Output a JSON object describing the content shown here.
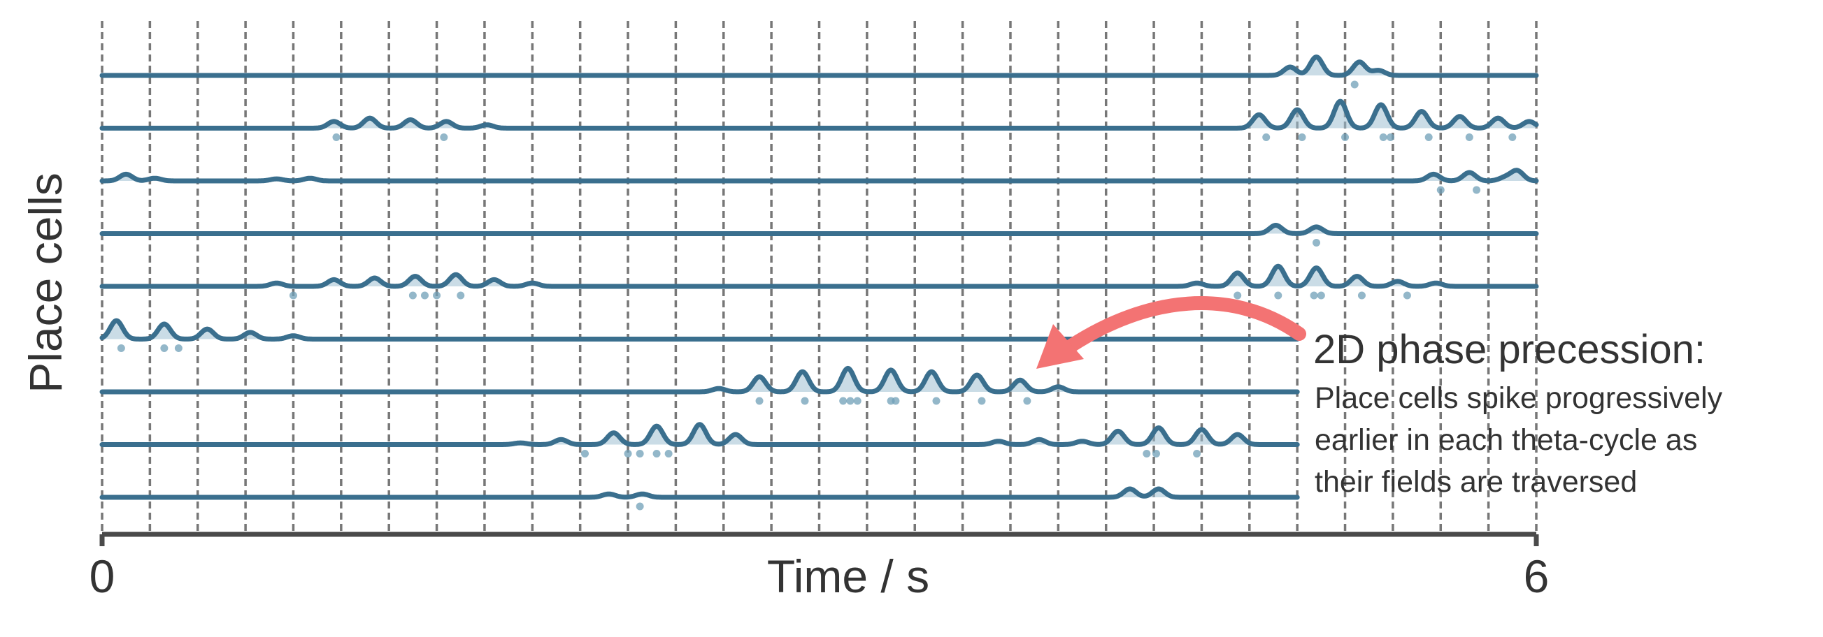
{
  "chart_data": {
    "type": "line",
    "title": "",
    "xlabel": "Time / s",
    "ylabel": "Place cells",
    "xlim": [
      0,
      6
    ],
    "x_ticks": [
      "0",
      "6"
    ],
    "grid": "vertical dashed lines at each theta cycle (every 0.2 s)",
    "theta_cycle_s": 0.2,
    "colors": {
      "trace": "#3a6f8e",
      "fill": "#9fc0d1",
      "spike": "#6f9fb7",
      "grid": "#777777",
      "axis": "#4a4a4a",
      "arrow": "#f37373"
    },
    "annotation": {
      "title": "2D phase precession:",
      "lines": [
        "Place cells spike progressively",
        "earlier in each theta-cycle as",
        "their fields are traversed"
      ],
      "arrow_target": {
        "t": 3.85,
        "cell": 7
      }
    },
    "cells": [
      {
        "id": 1,
        "t_end": 6.0,
        "peaks": [
          [
            4.97,
            0.25
          ],
          [
            5.08,
            0.55
          ],
          [
            5.26,
            0.4
          ],
          [
            5.34,
            0.15
          ]
        ],
        "spikes": [
          5.24
        ]
      },
      {
        "id": 2,
        "t_end": 6.0,
        "peaks": [
          [
            0.97,
            0.2
          ],
          [
            1.12,
            0.3
          ],
          [
            1.29,
            0.25
          ],
          [
            1.44,
            0.2
          ],
          [
            1.61,
            0.1
          ],
          [
            4.84,
            0.4
          ],
          [
            5.0,
            0.55
          ],
          [
            5.18,
            0.8
          ],
          [
            5.35,
            0.7
          ],
          [
            5.52,
            0.5
          ],
          [
            5.68,
            0.35
          ],
          [
            5.84,
            0.3
          ],
          [
            5.97,
            0.2
          ]
        ],
        "spikes": [
          0.98,
          1.43,
          4.87,
          5.02,
          5.2,
          5.36,
          5.39,
          5.55,
          5.72,
          5.9
        ]
      },
      {
        "id": 3,
        "t_end": 6.0,
        "peaks": [
          [
            0.1,
            0.2
          ],
          [
            0.22,
            0.08
          ],
          [
            0.73,
            0.06
          ],
          [
            0.87,
            0.08
          ],
          [
            5.57,
            0.2
          ],
          [
            5.72,
            0.25
          ],
          [
            5.87,
            0.1
          ],
          [
            5.92,
            0.3
          ]
        ],
        "spikes": [
          5.6,
          5.75
        ]
      },
      {
        "id": 4,
        "t_end": 6.0,
        "peaks": [
          [
            4.91,
            0.25
          ],
          [
            5.08,
            0.2
          ]
        ],
        "spikes": [
          5.08
        ]
      },
      {
        "id": 5,
        "t_end": 6.0,
        "peaks": [
          [
            0.73,
            0.1
          ],
          [
            0.97,
            0.2
          ],
          [
            1.14,
            0.25
          ],
          [
            1.31,
            0.3
          ],
          [
            1.48,
            0.35
          ],
          [
            1.64,
            0.2
          ],
          [
            1.8,
            0.1
          ],
          [
            4.58,
            0.1
          ],
          [
            4.75,
            0.4
          ],
          [
            4.92,
            0.6
          ],
          [
            5.08,
            0.55
          ],
          [
            5.25,
            0.3
          ],
          [
            5.42,
            0.15
          ],
          [
            5.58,
            0.1
          ]
        ],
        "spikes": [
          0.8,
          1.3,
          1.35,
          1.4,
          1.5,
          4.75,
          4.92,
          5.07,
          5.1,
          5.27,
          5.46
        ]
      },
      {
        "id": 6,
        "t_end": 5.0,
        "peaks": [
          [
            0.06,
            0.55
          ],
          [
            0.26,
            0.45
          ],
          [
            0.44,
            0.3
          ],
          [
            0.62,
            0.2
          ],
          [
            0.8,
            0.1
          ]
        ],
        "spikes": [
          0.08,
          0.26,
          0.32
        ]
      },
      {
        "id": 7,
        "t_end": 5.0,
        "peaks": [
          [
            2.58,
            0.1
          ],
          [
            2.75,
            0.45
          ],
          [
            2.93,
            0.6
          ],
          [
            3.12,
            0.7
          ],
          [
            3.3,
            0.65
          ],
          [
            3.47,
            0.6
          ],
          [
            3.66,
            0.5
          ],
          [
            3.84,
            0.35
          ],
          [
            4.0,
            0.15
          ]
        ],
        "spikes": [
          2.75,
          2.94,
          3.1,
          3.13,
          3.16,
          3.3,
          3.32,
          3.49,
          3.68,
          3.87
        ]
      },
      {
        "id": 8,
        "t_end": 5.0,
        "peaks": [
          [
            1.75,
            0.05
          ],
          [
            1.92,
            0.15
          ],
          [
            2.14,
            0.35
          ],
          [
            2.32,
            0.55
          ],
          [
            2.5,
            0.6
          ],
          [
            2.65,
            0.3
          ],
          [
            3.75,
            0.1
          ],
          [
            3.92,
            0.15
          ],
          [
            4.1,
            0.1
          ],
          [
            4.25,
            0.4
          ],
          [
            4.42,
            0.5
          ],
          [
            4.6,
            0.45
          ],
          [
            4.75,
            0.3
          ]
        ],
        "spikes": [
          2.02,
          2.2,
          2.25,
          2.32,
          2.37,
          4.37,
          4.41,
          4.58
        ]
      },
      {
        "id": 9,
        "t_end": 5.0,
        "peaks": [
          [
            2.12,
            0.1
          ],
          [
            2.26,
            0.1
          ],
          [
            4.3,
            0.25
          ],
          [
            4.42,
            0.25
          ]
        ],
        "spikes": [
          2.25
        ]
      }
    ]
  }
}
